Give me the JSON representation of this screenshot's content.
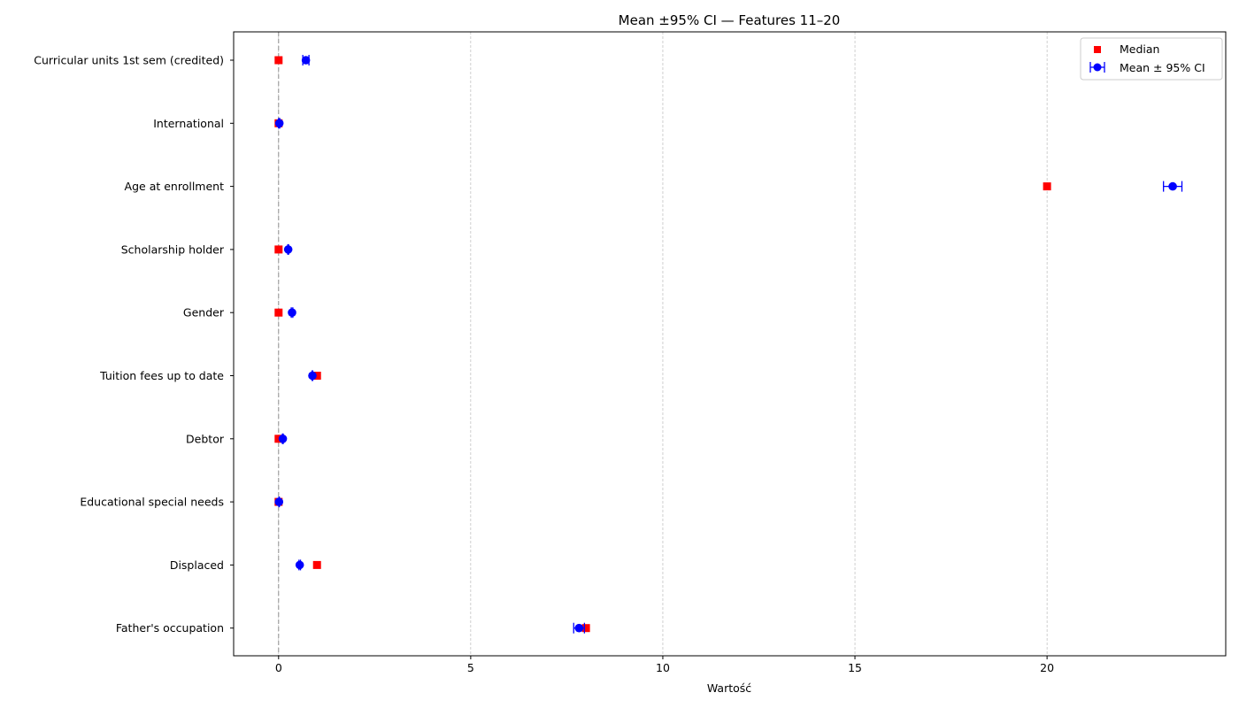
{
  "chart_data": {
    "type": "scatter",
    "title": "Mean ±95% CI — Features 11–20",
    "xlabel": "Wartość",
    "ylabel": "",
    "xlim": [
      -1.17,
      24.65
    ],
    "xticks": [
      0,
      5,
      10,
      15,
      20
    ],
    "xtick_labels": [
      "0",
      "5",
      "10",
      "15",
      "20"
    ],
    "grid": "vertical dashed",
    "reference_line_x": 0,
    "legend_position": "top-right",
    "categories": [
      "Curricular units 1st sem (credited)",
      "International",
      "Age at enrollment",
      "Scholarship holder",
      "Gender",
      "Tuition fees up to date",
      "Debtor",
      "Educational special needs",
      "Displaced",
      "Father's occupation"
    ],
    "series": [
      {
        "name": "Median",
        "marker": "square",
        "color": "#ff0000",
        "values": [
          0,
          0,
          20,
          0,
          0,
          1,
          0,
          0,
          1,
          8
        ]
      },
      {
        "name": "Mean ± 95% CI",
        "marker": "circle",
        "color": "#0000ff",
        "values": [
          0.71,
          0.02,
          23.27,
          0.25,
          0.35,
          0.88,
          0.11,
          0.01,
          0.55,
          7.82
        ],
        "ci_low": [
          0.63,
          0.0,
          23.03,
          0.24,
          0.33,
          0.87,
          0.1,
          0.01,
          0.53,
          7.68
        ],
        "ci_high": [
          0.79,
          0.03,
          23.51,
          0.26,
          0.37,
          0.89,
          0.12,
          0.02,
          0.57,
          7.96
        ]
      }
    ]
  }
}
